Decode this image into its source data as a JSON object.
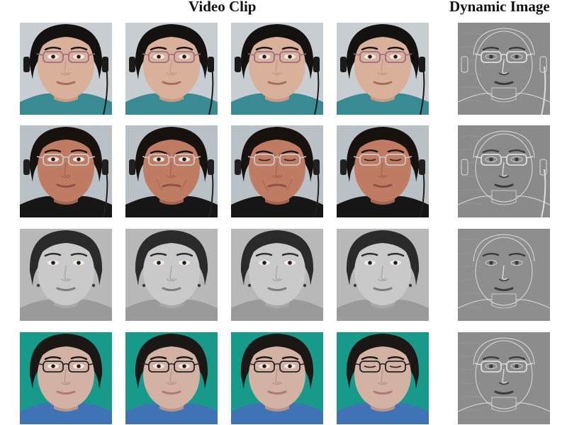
{
  "headings": {
    "video_clip": "Video Clip",
    "dynamic_image": "Dynamic Image"
  },
  "rows": [
    {
      "subject": "woman-glasses-headphones",
      "palette": {
        "bg": "#c8cdd2",
        "hair": "#141210",
        "skin": "#d9b19a",
        "skin_shade": "#c89a82",
        "lips": "#a86e62",
        "frames": "#9a6e86",
        "clothing": "#3a8a93",
        "headset": "#1a1a1a"
      },
      "frames_state": [
        "neutral",
        "neutral",
        "neutral",
        "neutral"
      ],
      "dynamic_tone": "#8b8b8b"
    },
    {
      "subject": "man-glasses-frowning",
      "palette": {
        "bg": "#b9c0c6",
        "hair": "#18120e",
        "skin": "#c07c62",
        "skin_shade": "#a6654e",
        "lips": "#8e4f45",
        "frames": "#c8c8c8",
        "clothing": "#161616",
        "headset": "#202020"
      },
      "frames_state": [
        "neutral",
        "frown",
        "frown-eyes-closed",
        "eyes-closed"
      ],
      "dynamic_tone": "#8a8a8a"
    },
    {
      "subject": "woman-grayscale",
      "palette": {
        "bg": "#b8b8b8",
        "hair": "#2a2a2a",
        "skin": "#c9c9c9",
        "skin_shade": "#a8a8a8",
        "lips": "#7c7c7c",
        "frames": "none",
        "clothing": "#9a9a9a",
        "headset": "none"
      },
      "frames_state": [
        "neutral",
        "neutral",
        "neutral",
        "neutral"
      ],
      "dynamic_tone": "#8e8e8e"
    },
    {
      "subject": "young-man-glasses-teal",
      "palette": {
        "bg": "#189a8a",
        "hair": "#1a1714",
        "skin": "#d3b1a3",
        "skin_shade": "#b8958a",
        "lips": "#b07a78",
        "frames": "#202428",
        "clothing": "#3f73b5",
        "headset": "none"
      },
      "frames_state": [
        "neutral",
        "neutral",
        "neutral",
        "eyes-closed"
      ],
      "dynamic_tone": "#8c8c8c"
    }
  ]
}
